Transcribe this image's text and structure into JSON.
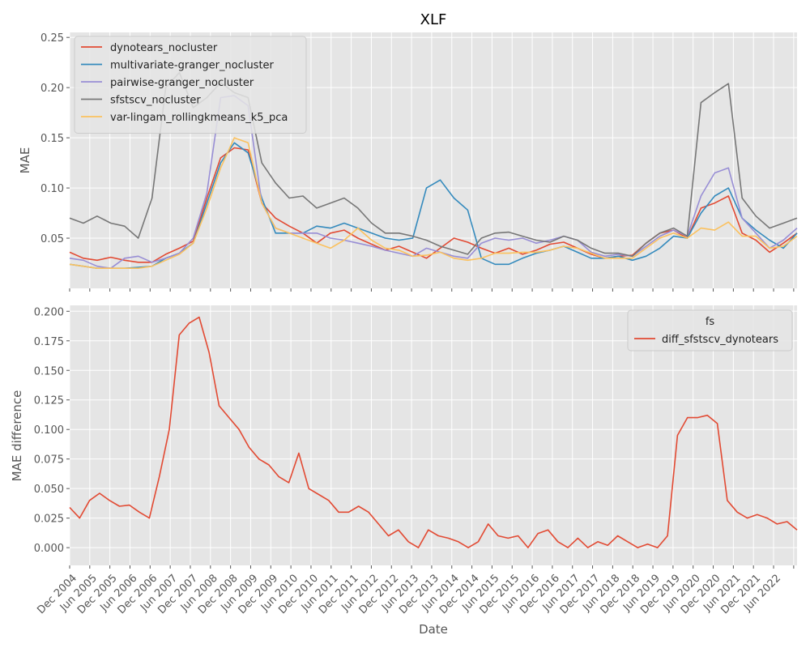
{
  "title": "XLF",
  "chart_data": [
    {
      "type": "line",
      "title": "XLF",
      "xlabel": "",
      "ylabel": "MAE",
      "xlim": [
        "2004-12",
        "2023-01"
      ],
      "ylim": [
        0.0,
        0.255
      ],
      "yticks": [
        0.05,
        0.1,
        0.15,
        0.2,
        0.25
      ],
      "ytick_labels": [
        "0.05",
        "0.10",
        "0.15",
        "0.20",
        "0.25"
      ],
      "grid": true,
      "legend_position": "upper-left",
      "x_anchor_dates": [
        "2004-12",
        "2005-06",
        "2005-12",
        "2006-06",
        "2006-12",
        "2007-06",
        "2007-12",
        "2008-06",
        "2008-12",
        "2009-06",
        "2009-12",
        "2010-06",
        "2010-12",
        "2011-06",
        "2011-12",
        "2012-06",
        "2012-12",
        "2013-06",
        "2013-12",
        "2014-06",
        "2014-12",
        "2015-06",
        "2015-12",
        "2016-06",
        "2016-12",
        "2017-06",
        "2017-12",
        "2018-06",
        "2018-12",
        "2019-06",
        "2019-12",
        "2020-06",
        "2020-12",
        "2021-06",
        "2021-12",
        "2022-06",
        "2022-12"
      ],
      "series": [
        {
          "name": "dynotears_nocluster",
          "color": "#E24A33",
          "values": [
            0.036,
            0.03,
            0.028,
            0.031,
            0.028,
            0.026,
            0.026,
            0.034,
            0.04,
            0.047,
            0.09,
            0.13,
            0.14,
            0.138,
            0.085,
            0.07,
            0.062,
            0.055,
            0.045,
            0.055,
            0.058,
            0.05,
            0.044,
            0.038,
            0.042,
            0.036,
            0.03,
            0.04,
            0.05,
            0.046,
            0.04,
            0.035,
            0.04,
            0.034,
            0.038,
            0.044,
            0.046,
            0.04,
            0.034,
            0.03,
            0.032,
            0.033,
            0.045,
            0.055,
            0.058,
            0.05,
            0.08,
            0.085,
            0.092,
            0.055,
            0.048,
            0.036,
            0.045,
            0.055
          ]
        },
        {
          "name": "multivariate-granger_nocluster",
          "color": "#348ABD",
          "values": [
            0.024,
            0.022,
            0.02,
            0.02,
            0.02,
            0.021,
            0.022,
            0.03,
            0.035,
            0.045,
            0.085,
            0.125,
            0.145,
            0.135,
            0.09,
            0.055,
            0.055,
            0.055,
            0.062,
            0.06,
            0.065,
            0.06,
            0.055,
            0.05,
            0.048,
            0.05,
            0.1,
            0.108,
            0.09,
            0.078,
            0.03,
            0.024,
            0.024,
            0.03,
            0.035,
            0.038,
            0.042,
            0.036,
            0.03,
            0.03,
            0.032,
            0.028,
            0.032,
            0.04,
            0.052,
            0.05,
            0.075,
            0.092,
            0.1,
            0.07,
            0.058,
            0.048,
            0.04,
            0.055
          ]
        },
        {
          "name": "pairwise-granger_nocluster",
          "color": "#988ED5",
          "values": [
            0.03,
            0.028,
            0.022,
            0.02,
            0.03,
            0.032,
            0.026,
            0.03,
            0.035,
            0.05,
            0.095,
            0.19,
            0.192,
            0.182,
            0.085,
            0.06,
            0.055,
            0.055,
            0.055,
            0.05,
            0.048,
            0.045,
            0.042,
            0.038,
            0.035,
            0.032,
            0.04,
            0.036,
            0.032,
            0.03,
            0.045,
            0.05,
            0.048,
            0.05,
            0.045,
            0.048,
            0.052,
            0.048,
            0.036,
            0.032,
            0.034,
            0.032,
            0.042,
            0.052,
            0.058,
            0.052,
            0.092,
            0.115,
            0.12,
            0.07,
            0.055,
            0.04,
            0.048,
            0.06
          ]
        },
        {
          "name": "sfstscv_nocluster",
          "color": "#777777",
          "values": [
            0.07,
            0.065,
            0.072,
            0.065,
            0.062,
            0.05,
            0.09,
            0.2,
            0.215,
            0.18,
            0.19,
            0.205,
            0.195,
            0.19,
            0.125,
            0.105,
            0.09,
            0.092,
            0.08,
            0.085,
            0.09,
            0.08,
            0.065,
            0.055,
            0.055,
            0.052,
            0.048,
            0.042,
            0.038,
            0.034,
            0.05,
            0.055,
            0.056,
            0.052,
            0.048,
            0.046,
            0.052,
            0.048,
            0.04,
            0.035,
            0.035,
            0.032,
            0.045,
            0.055,
            0.06,
            0.052,
            0.185,
            0.195,
            0.204,
            0.09,
            0.072,
            0.06,
            0.065,
            0.07
          ]
        },
        {
          "name": "var-lingam_rollingkmeans_k5_pca",
          "color": "#FBC15E",
          "values": [
            0.024,
            0.022,
            0.02,
            0.02,
            0.02,
            0.02,
            0.022,
            0.028,
            0.034,
            0.045,
            0.08,
            0.12,
            0.15,
            0.145,
            0.085,
            0.06,
            0.055,
            0.05,
            0.045,
            0.04,
            0.048,
            0.06,
            0.048,
            0.04,
            0.038,
            0.032,
            0.033,
            0.036,
            0.03,
            0.028,
            0.03,
            0.035,
            0.035,
            0.036,
            0.036,
            0.038,
            0.042,
            0.04,
            0.035,
            0.03,
            0.03,
            0.03,
            0.04,
            0.05,
            0.055,
            0.05,
            0.06,
            0.058,
            0.066,
            0.052,
            0.052,
            0.04,
            0.042,
            0.052
          ]
        }
      ]
    },
    {
      "type": "line",
      "title": "",
      "xlabel": "Date",
      "ylabel": "MAE difference",
      "xlim": [
        "2004-12",
        "2023-01"
      ],
      "ylim": [
        -0.015,
        0.205
      ],
      "yticks": [
        0.0,
        0.025,
        0.05,
        0.075,
        0.1,
        0.125,
        0.15,
        0.175,
        0.2
      ],
      "ytick_labels": [
        "0.000",
        "0.025",
        "0.050",
        "0.075",
        "0.100",
        "0.125",
        "0.150",
        "0.175",
        "0.200"
      ],
      "xtick_labels": [
        "Dec 2004",
        "Jun 2005",
        "Dec 2005",
        "Jun 2006",
        "Dec 2006",
        "Jun 2007",
        "Dec 2007",
        "Jun 2008",
        "Dec 2008",
        "Jun 2009",
        "Dec 2009",
        "Jun 2010",
        "Dec 2010",
        "Jun 2011",
        "Dec 2011",
        "Jun 2012",
        "Dec 2012",
        "Jun 2013",
        "Dec 2013",
        "Jun 2014",
        "Dec 2014",
        "Jun 2015",
        "Dec 2015",
        "Jun 2016",
        "Dec 2016",
        "Jun 2017",
        "Dec 2017",
        "Jun 2018",
        "Dec 2018",
        "Jun 2019",
        "Dec 2019",
        "Jun 2020",
        "Dec 2020",
        "Jun 2021",
        "Dec 2021",
        "Jun 2022"
      ],
      "grid": true,
      "legend_title": "fs",
      "legend_position": "upper-right",
      "series": [
        {
          "name": "diff_sfstscv_dynotears",
          "color": "#E24A33",
          "values": [
            0.034,
            0.025,
            0.04,
            0.046,
            0.04,
            0.035,
            0.036,
            0.03,
            0.025,
            0.06,
            0.1,
            0.18,
            0.19,
            0.195,
            0.165,
            0.12,
            0.11,
            0.1,
            0.085,
            0.075,
            0.07,
            0.06,
            0.055,
            0.08,
            0.05,
            0.045,
            0.04,
            0.03,
            0.03,
            0.035,
            0.03,
            0.02,
            0.01,
            0.015,
            0.005,
            0.0,
            0.015,
            0.01,
            0.008,
            0.005,
            0.0,
            0.005,
            0.02,
            0.01,
            0.008,
            0.01,
            0.0,
            0.012,
            0.015,
            0.005,
            0.0,
            0.008,
            0.0,
            0.005,
            0.002,
            0.01,
            0.005,
            0.0,
            0.003,
            0.0,
            0.01,
            0.095,
            0.11,
            0.11,
            0.112,
            0.105,
            0.04,
            0.03,
            0.025,
            0.028,
            0.025,
            0.02,
            0.022,
            0.015
          ]
        }
      ]
    }
  ]
}
